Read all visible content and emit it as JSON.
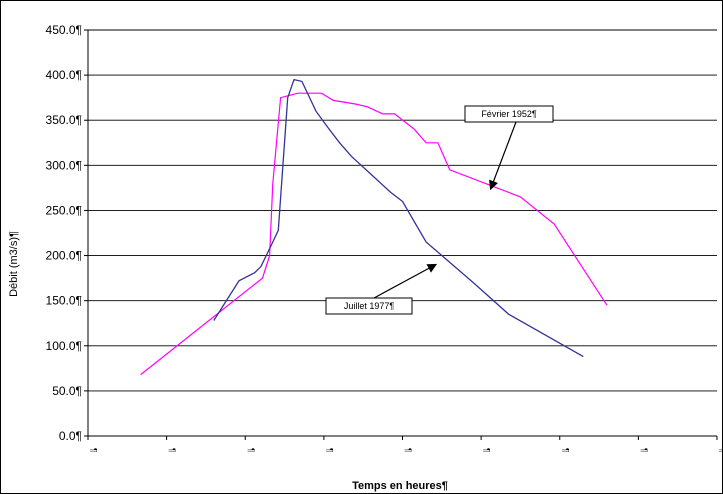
{
  "chart_data": {
    "type": "line",
    "title": "",
    "xlabel": "Temps en heures¶",
    "ylabel": "Débit (m3/s)¶",
    "ylim": [
      0,
      450
    ],
    "ytick_labels": [
      "0.0¶",
      "50.0¶",
      "100.0¶",
      "150.0¶",
      "200.0¶",
      "250.0¶",
      "300.0¶",
      "350.0¶",
      "400.0¶",
      "450.0¶"
    ],
    "ytick_values": [
      0,
      50,
      100,
      150,
      200,
      250,
      300,
      350,
      400,
      450
    ],
    "xtick_labels": [
      "¶",
      "¶",
      "¶",
      "¶",
      "¶",
      "¶",
      "¶",
      "¶",
      "¶"
    ],
    "xlim": [
      0,
      8
    ],
    "grid": true,
    "series": [
      {
        "name": "Février 1952¶",
        "color": "#ff00ff",
        "x": [
          0.67,
          2.22,
          2.31,
          2.35,
          2.45,
          2.67,
          2.97,
          3.12,
          3.4,
          3.55,
          3.75,
          3.9,
          4.15,
          4.3,
          4.45,
          4.6,
          5.5,
          5.93,
          6.6
        ],
        "y": [
          68,
          175,
          200,
          280,
          375,
          380,
          380,
          372,
          368,
          365,
          357,
          357,
          340,
          325,
          325,
          295,
          265,
          235,
          145
        ]
      },
      {
        "name": "Juillet 1977¶",
        "color": "#333399",
        "x": [
          1.6,
          1.92,
          2.12,
          2.2,
          2.35,
          2.42,
          2.54,
          2.62,
          2.72,
          2.9,
          3.05,
          3.2,
          3.35,
          3.6,
          3.85,
          4.0,
          4.3,
          4.9,
          5.35,
          6.3
        ],
        "y": [
          128,
          172,
          181,
          188,
          215,
          228,
          375,
          395,
          393,
          360,
          342,
          325,
          310,
          290,
          270,
          260,
          215,
          170,
          135,
          88
        ]
      }
    ],
    "annotations": [
      {
        "text": "Février 1952¶",
        "points_to_series": 0
      },
      {
        "text": "Juillet 1977¶",
        "points_to_series": 1
      }
    ],
    "colors": {
      "gridline": "#000000",
      "background": "#ffffff"
    }
  }
}
